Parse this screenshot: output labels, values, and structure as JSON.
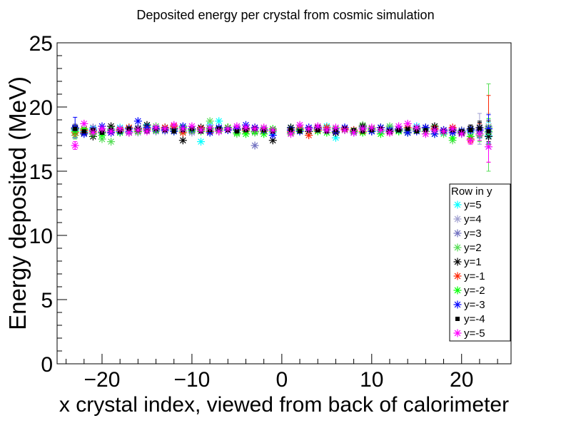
{
  "chart_data": {
    "type": "scatter",
    "title": "Deposited energy per crystal from cosmic simulation",
    "xlabel": "x crystal index, viewed from back of calorimeter",
    "ylabel": "Energy deposited (MeV)",
    "xlim": [
      -25,
      25.5
    ],
    "ylim": [
      0,
      25
    ],
    "xticks": [
      -20,
      -10,
      0,
      10,
      20
    ],
    "xtick_labels": [
      "−20",
      "−10",
      "0",
      "10",
      "20"
    ],
    "yticks": [
      0,
      5,
      10,
      15,
      20,
      25
    ],
    "ytick_labels": [
      "0",
      "5",
      "10",
      "15",
      "20",
      "25"
    ],
    "grid": false,
    "legend": {
      "title": "Row in y",
      "position": "right"
    },
    "x": [
      -23,
      -22,
      -21,
      -20,
      -19,
      -18,
      -17,
      -16,
      -15,
      -14,
      -13,
      -12,
      -11,
      -10,
      -9,
      -8,
      -7,
      -6,
      -5,
      -4,
      -3,
      -2,
      -1,
      1,
      2,
      3,
      4,
      5,
      6,
      7,
      8,
      9,
      10,
      11,
      12,
      13,
      14,
      15,
      16,
      17,
      18,
      19,
      20,
      21,
      22,
      23
    ],
    "series": [
      {
        "name": "y=5",
        "color": "#00ffff",
        "marker": "star",
        "values": [
          18.2,
          18.1,
          18.3,
          18.0,
          18.2,
          18.4,
          18.1,
          18.3,
          18.5,
          18.2,
          18.4,
          18.3,
          18.1,
          18.2,
          17.3,
          18.6,
          18.9,
          18.4,
          18.2,
          18.1,
          18.3,
          18.2,
          18.0,
          18.4,
          18.2,
          18.1,
          18.3,
          18.5,
          17.6,
          18.3,
          18.2,
          18.4,
          18.3,
          18.1,
          18.4,
          18.2,
          18.3,
          18.5,
          18.1,
          18.2,
          18.0,
          18.3,
          17.9,
          18.1,
          18.2,
          17.8
        ],
        "err": [
          0.3,
          0.2,
          0.2,
          0.2,
          0.2,
          0.2,
          0.2,
          0.2,
          0.2,
          0.2,
          0.2,
          0.2,
          0.2,
          0.2,
          0.2,
          0.2,
          0.2,
          0.2,
          0.2,
          0.2,
          0.2,
          0.2,
          0.2,
          0.2,
          0.2,
          0.2,
          0.2,
          0.2,
          0.2,
          0.2,
          0.2,
          0.2,
          0.2,
          0.2,
          0.2,
          0.2,
          0.2,
          0.2,
          0.2,
          0.2,
          0.2,
          0.2,
          0.2,
          0.3,
          0.5,
          1.0
        ]
      },
      {
        "name": "y=4",
        "color": "#a0a0d0",
        "marker": "star",
        "values": [
          18.4,
          18.3,
          18.2,
          18.1,
          18.3,
          18.2,
          18.4,
          18.0,
          18.2,
          18.3,
          18.1,
          18.4,
          18.2,
          18.0,
          18.3,
          18.2,
          18.1,
          18.3,
          18.4,
          18.2,
          18.1,
          18.3,
          18.2,
          18.3,
          18.1,
          18.4,
          18.2,
          18.3,
          18.1,
          18.4,
          18.2,
          18.3,
          18.1,
          18.2,
          18.4,
          18.3,
          18.1,
          18.2,
          18.3,
          18.1,
          18.2,
          18.4,
          18.1,
          18.0,
          18.3,
          18.5
        ],
        "err": [
          0.3,
          0.2,
          0.2,
          0.2,
          0.2,
          0.2,
          0.2,
          0.2,
          0.2,
          0.2,
          0.2,
          0.2,
          0.2,
          0.2,
          0.2,
          0.2,
          0.2,
          0.2,
          0.2,
          0.2,
          0.2,
          0.2,
          0.2,
          0.2,
          0.2,
          0.2,
          0.2,
          0.2,
          0.2,
          0.2,
          0.2,
          0.2,
          0.2,
          0.2,
          0.2,
          0.2,
          0.2,
          0.2,
          0.2,
          0.2,
          0.2,
          0.2,
          0.2,
          0.3,
          1.2,
          1.0
        ]
      },
      {
        "name": "y=3",
        "color": "#7070c0",
        "marker": "star",
        "values": [
          18.3,
          18.2,
          18.4,
          18.1,
          18.2,
          18.3,
          18.1,
          18.4,
          18.2,
          18.1,
          18.3,
          18.2,
          18.4,
          18.1,
          18.2,
          18.3,
          18.1,
          18.2,
          18.3,
          18.1,
          17.0,
          18.2,
          18.1,
          18.2,
          18.4,
          18.1,
          18.3,
          18.2,
          18.1,
          18.3,
          18.2,
          18.4,
          18.1,
          18.2,
          18.3,
          18.1,
          18.2,
          18.4,
          18.1,
          18.3,
          18.2,
          18.1,
          18.2,
          18.3,
          18.1,
          18.0
        ],
        "err": [
          0.3,
          0.2,
          0.2,
          0.2,
          0.2,
          0.2,
          0.2,
          0.2,
          0.2,
          0.2,
          0.2,
          0.2,
          0.2,
          0.2,
          0.2,
          0.2,
          0.2,
          0.2,
          0.2,
          0.2,
          0.2,
          0.2,
          0.2,
          0.2,
          0.2,
          0.2,
          0.2,
          0.2,
          0.2,
          0.2,
          0.2,
          0.2,
          0.2,
          0.2,
          0.2,
          0.2,
          0.2,
          0.2,
          0.2,
          0.2,
          0.2,
          0.2,
          0.2,
          0.3,
          0.5,
          1.0
        ]
      },
      {
        "name": "y=2",
        "color": "#55dd55",
        "marker": "star",
        "values": [
          17.8,
          18.1,
          18.0,
          17.5,
          17.3,
          18.2,
          18.4,
          18.1,
          18.3,
          18.5,
          18.2,
          18.4,
          18.1,
          18.3,
          18.2,
          18.9,
          18.4,
          18.2,
          17.9,
          18.1,
          18.0,
          18.3,
          18.1,
          18.0,
          18.3,
          18.1,
          18.2,
          18.4,
          18.0,
          18.2,
          18.1,
          18.6,
          18.2,
          18.4,
          18.5,
          18.1,
          18.3,
          18.2,
          18.1,
          18.4,
          17.9,
          17.4,
          18.0,
          18.2,
          17.8,
          18.4
        ],
        "err": [
          0.3,
          0.2,
          0.2,
          0.2,
          0.2,
          0.2,
          0.2,
          0.2,
          0.2,
          0.2,
          0.2,
          0.2,
          0.2,
          0.2,
          0.2,
          0.2,
          0.2,
          0.2,
          0.2,
          0.2,
          0.2,
          0.2,
          0.2,
          0.2,
          0.2,
          0.2,
          0.2,
          0.2,
          0.2,
          0.2,
          0.2,
          0.2,
          0.2,
          0.2,
          0.2,
          0.2,
          0.2,
          0.2,
          0.2,
          0.2,
          0.2,
          0.2,
          0.2,
          0.3,
          0.5,
          3.4
        ]
      },
      {
        "name": "y=1",
        "color": "#000000",
        "marker": "star",
        "values": [
          18.3,
          18.0,
          17.7,
          18.0,
          18.5,
          18.2,
          18.0,
          18.3,
          18.6,
          18.2,
          18.4,
          18.3,
          17.4,
          18.2,
          18.4,
          18.1,
          18.3,
          18.4,
          18.2,
          18.3,
          18.1,
          18.2,
          17.4,
          18.4,
          18.2,
          18.1,
          18.4,
          18.2,
          18.0,
          18.3,
          18.1,
          18.5,
          18.3,
          18.4,
          18.1,
          18.2,
          18.0,
          18.3,
          18.4,
          18.5,
          18.1,
          18.2,
          18.0,
          18.3,
          18.4,
          17.7
        ],
        "err": [
          0.3,
          0.2,
          0.2,
          0.2,
          0.2,
          0.2,
          0.2,
          0.2,
          0.2,
          0.2,
          0.2,
          0.2,
          0.2,
          0.2,
          0.2,
          0.2,
          0.2,
          0.2,
          0.2,
          0.2,
          0.2,
          0.2,
          0.2,
          0.2,
          0.2,
          0.2,
          0.2,
          0.2,
          0.2,
          0.2,
          0.2,
          0.2,
          0.2,
          0.2,
          0.2,
          0.2,
          0.2,
          0.2,
          0.2,
          0.2,
          0.2,
          0.2,
          0.2,
          0.3,
          0.5,
          0.6
        ]
      },
      {
        "name": "y=-1",
        "color": "#ff2200",
        "marker": "star",
        "values": [
          18.0,
          18.2,
          18.1,
          18.3,
          18.0,
          18.2,
          18.4,
          18.1,
          18.3,
          18.2,
          18.4,
          18.5,
          18.0,
          18.2,
          18.3,
          18.1,
          18.2,
          18.4,
          18.3,
          18.2,
          18.4,
          18.1,
          18.2,
          18.1,
          18.3,
          17.8,
          18.2,
          18.4,
          18.1,
          18.3,
          18.2,
          18.1,
          18.3,
          18.2,
          18.0,
          18.3,
          18.4,
          18.2,
          18.1,
          18.3,
          18.2,
          18.4,
          18.1,
          17.5,
          18.2,
          18.3
        ],
        "err": [
          0.3,
          0.2,
          0.2,
          0.2,
          0.2,
          0.2,
          0.2,
          0.2,
          0.2,
          0.2,
          0.2,
          0.2,
          0.2,
          0.2,
          0.2,
          0.2,
          0.2,
          0.2,
          0.2,
          0.2,
          0.2,
          0.2,
          0.2,
          0.2,
          0.2,
          0.2,
          0.2,
          0.2,
          0.2,
          0.2,
          0.2,
          0.2,
          0.2,
          0.2,
          0.2,
          0.2,
          0.2,
          0.2,
          0.2,
          0.2,
          0.2,
          0.2,
          0.2,
          0.3,
          0.5,
          2.6
        ]
      },
      {
        "name": "y=-2",
        "color": "#00ff00",
        "marker": "star",
        "values": [
          18.1,
          18.3,
          17.9,
          17.8,
          18.2,
          18.0,
          18.3,
          18.1,
          18.4,
          18.2,
          18.3,
          18.1,
          18.4,
          18.2,
          18.1,
          18.3,
          18.2,
          18.4,
          18.0,
          17.9,
          18.1,
          17.9,
          18.3,
          18.0,
          18.2,
          18.3,
          18.1,
          18.0,
          18.3,
          18.2,
          18.1,
          18.0,
          18.3,
          17.9,
          18.2,
          18.1,
          18.0,
          18.2,
          18.1,
          17.9,
          18.2,
          17.6,
          18.1,
          17.7,
          17.9,
          18.1
        ],
        "err": [
          0.3,
          0.2,
          0.2,
          0.2,
          0.2,
          0.2,
          0.2,
          0.2,
          0.2,
          0.2,
          0.2,
          0.2,
          0.2,
          0.2,
          0.2,
          0.2,
          0.2,
          0.2,
          0.2,
          0.2,
          0.2,
          0.2,
          0.2,
          0.2,
          0.2,
          0.2,
          0.2,
          0.2,
          0.2,
          0.2,
          0.2,
          0.2,
          0.2,
          0.2,
          0.2,
          0.2,
          0.2,
          0.2,
          0.2,
          0.2,
          0.2,
          0.2,
          0.2,
          0.3,
          0.5,
          1.0
        ]
      },
      {
        "name": "y=-3",
        "color": "#0000ff",
        "marker": "star",
        "values": [
          18.4,
          17.9,
          18.2,
          18.5,
          18.0,
          18.1,
          18.3,
          18.9,
          18.4,
          18.3,
          18.2,
          18.1,
          18.5,
          18.3,
          18.2,
          18.0,
          18.4,
          18.2,
          18.3,
          18.6,
          18.4,
          18.2,
          17.8,
          18.2,
          18.1,
          18.4,
          18.3,
          18.2,
          18.1,
          18.4,
          18.0,
          18.3,
          18.1,
          18.4,
          18.2,
          18.3,
          18.0,
          18.1,
          18.4,
          17.9,
          18.2,
          18.0,
          18.1,
          18.2,
          18.2,
          18.3
        ],
        "err": [
          0.8,
          0.2,
          0.2,
          0.2,
          0.2,
          0.2,
          0.2,
          0.2,
          0.2,
          0.2,
          0.2,
          0.2,
          0.2,
          0.2,
          0.2,
          0.2,
          0.2,
          0.2,
          0.2,
          0.2,
          0.2,
          0.2,
          0.2,
          0.2,
          0.2,
          0.2,
          0.2,
          0.2,
          0.2,
          0.2,
          0.2,
          0.2,
          0.2,
          0.2,
          0.2,
          0.2,
          0.2,
          0.2,
          0.2,
          0.2,
          0.2,
          0.2,
          0.2,
          0.3,
          0.6,
          1.1
        ]
      },
      {
        "name": "y=-4",
        "color": "#000000",
        "marker": "square",
        "values": [
          18.3,
          18.1,
          18.2,
          18.0,
          18.2,
          18.1,
          18.3,
          18.2,
          18.1,
          18.3,
          18.2,
          18.1,
          18.2,
          18.3,
          18.1,
          18.2,
          18.3,
          18.2,
          18.1,
          18.2,
          18.3,
          18.2,
          18.1,
          18.2,
          18.1,
          18.3,
          18.2,
          18.1,
          18.2,
          18.3,
          18.2,
          18.1,
          18.2,
          18.3,
          18.1,
          18.2,
          18.3,
          18.1,
          18.2,
          18.3,
          18.1,
          18.2,
          18.1,
          18.2,
          18.3,
          18.1
        ],
        "err": [
          0.3,
          0.2,
          0.2,
          0.2,
          0.2,
          0.2,
          0.2,
          0.2,
          0.2,
          0.2,
          0.2,
          0.2,
          0.2,
          0.2,
          0.2,
          0.2,
          0.2,
          0.2,
          0.2,
          0.2,
          0.2,
          0.2,
          0.2,
          0.2,
          0.2,
          0.2,
          0.2,
          0.2,
          0.2,
          0.2,
          0.2,
          0.2,
          0.2,
          0.2,
          0.2,
          0.2,
          0.2,
          0.2,
          0.2,
          0.2,
          0.2,
          0.2,
          0.2,
          0.3,
          0.5,
          0.8
        ]
      },
      {
        "name": "y=-5",
        "color": "#ff00ff",
        "marker": "star",
        "values": [
          17.0,
          18.7,
          18.0,
          18.3,
          18.1,
          18.3,
          18.0,
          18.2,
          18.1,
          18.4,
          18.3,
          18.6,
          18.3,
          18.5,
          18.2,
          18.4,
          18.1,
          18.3,
          18.5,
          18.4,
          18.3,
          18.4,
          18.2,
          17.9,
          18.6,
          18.3,
          18.5,
          18.2,
          18.4,
          18.2,
          18.0,
          18.3,
          18.4,
          18.2,
          18.0,
          18.5,
          18.7,
          18.4,
          17.9,
          18.2,
          18.1,
          18.3,
          17.9,
          17.4,
          17.9,
          16.9
        ],
        "err": [
          0.3,
          0.2,
          0.2,
          0.2,
          0.2,
          0.2,
          0.2,
          0.2,
          0.2,
          0.2,
          0.2,
          0.2,
          0.2,
          0.2,
          0.2,
          0.2,
          0.2,
          0.2,
          0.2,
          0.2,
          0.2,
          0.2,
          0.2,
          0.2,
          0.2,
          0.2,
          0.2,
          0.2,
          0.2,
          0.2,
          0.2,
          0.2,
          0.2,
          0.2,
          0.2,
          0.2,
          0.2,
          0.2,
          0.2,
          0.2,
          0.2,
          0.2,
          0.2,
          0.3,
          0.5,
          1.2
        ]
      }
    ]
  }
}
